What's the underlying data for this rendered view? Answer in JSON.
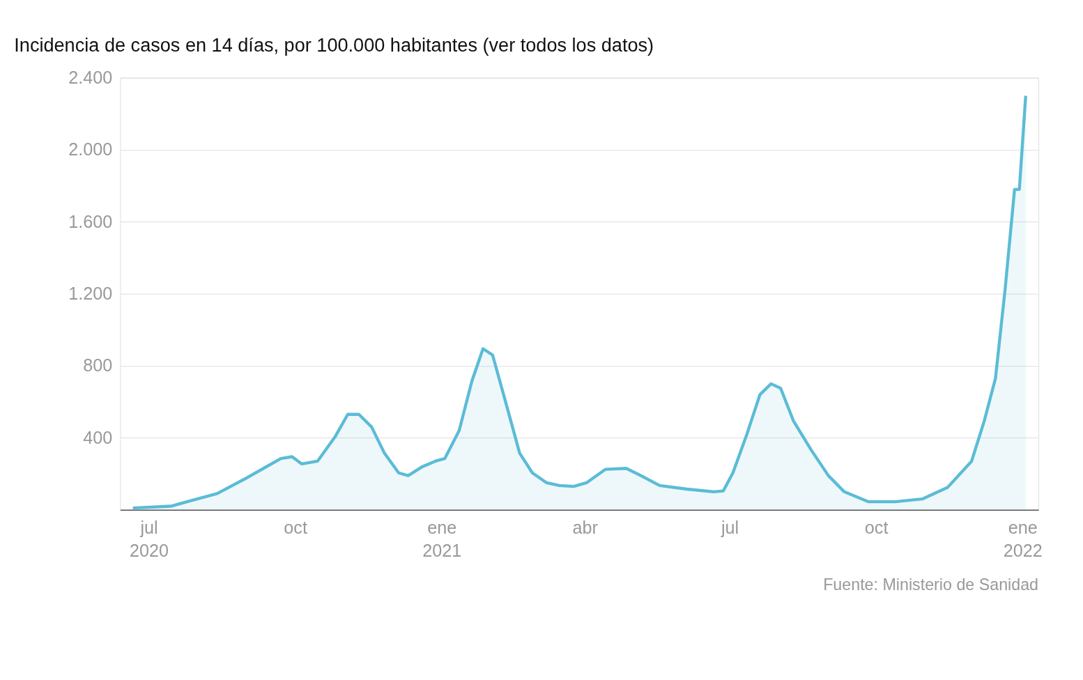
{
  "chart_data": {
    "type": "area",
    "title": "Incidencia de casos en 14 días, por 100.000 habitantes (ver todos los datos)",
    "x": [
      "2020-06-21",
      "2020-07-15",
      "2020-07-27",
      "2020-08-13",
      "2020-08-30",
      "2020-09-12",
      "2020-09-22",
      "2020-09-29",
      "2020-10-05",
      "2020-10-15",
      "2020-10-26",
      "2020-11-03",
      "2020-11-10",
      "2020-11-18",
      "2020-11-26",
      "2020-12-05",
      "2020-12-11",
      "2020-12-20",
      "2020-12-28",
      "2021-01-03",
      "2021-01-12",
      "2021-01-20",
      "2021-01-27",
      "2021-02-02",
      "2021-02-10",
      "2021-02-19",
      "2021-02-27",
      "2021-03-08",
      "2021-03-16",
      "2021-03-25",
      "2021-04-02",
      "2021-04-14",
      "2021-04-27",
      "2021-05-05",
      "2021-05-18",
      "2021-06-04",
      "2021-06-21",
      "2021-06-27",
      "2021-07-03",
      "2021-07-12",
      "2021-07-20",
      "2021-07-27",
      "2021-08-02",
      "2021-08-10",
      "2021-08-21",
      "2021-09-01",
      "2021-09-11",
      "2021-09-26",
      "2021-10-13",
      "2021-10-30",
      "2021-11-15",
      "2021-11-30",
      "2021-12-08",
      "2021-12-15",
      "2021-12-21",
      "2021-12-27",
      "2021-12-30",
      "2022-01-03"
    ],
    "series": [
      {
        "color": "#5bbcd6",
        "values": [
          10,
          20,
          50,
          90,
          170,
          235,
          285,
          295,
          255,
          270,
          405,
          530,
          530,
          460,
          315,
          205,
          190,
          240,
          270,
          285,
          440,
          715,
          895,
          860,
          605,
          315,
          205,
          150,
          135,
          130,
          150,
          225,
          230,
          195,
          135,
          115,
          100,
          105,
          205,
          425,
          640,
          700,
          675,
          495,
          335,
          190,
          100,
          45,
          45,
          60,
          125,
          270,
          495,
          730,
          1220,
          1780,
          1780,
          2300
        ]
      }
    ],
    "xlim": [
      "2020-06-13",
      "2022-01-11"
    ],
    "xticks": [
      {
        "value": "2020-07-01",
        "label": "jul 2020"
      },
      {
        "value": "2020-10-01",
        "label": "oct"
      },
      {
        "value": "2021-01-01",
        "label": "ene 2021"
      },
      {
        "value": "2021-04-01",
        "label": "abr"
      },
      {
        "value": "2021-07-01",
        "label": "jul"
      },
      {
        "value": "2021-10-01",
        "label": "oct"
      },
      {
        "value": "2022-01-01",
        "label": "ene 2022"
      }
    ],
    "ylim": [
      0,
      2400
    ],
    "yticks": [
      {
        "value": 400,
        "label": "400"
      },
      {
        "value": 800,
        "label": "800"
      },
      {
        "value": 1200,
        "label": "1.200"
      },
      {
        "value": 1600,
        "label": "1.600"
      },
      {
        "value": 2000,
        "label": "2.000"
      },
      {
        "value": 2400,
        "label": "2.400"
      }
    ],
    "grid": "y",
    "legend": false,
    "marker": "none",
    "line_style": "solid",
    "annotations": [
      "Fuente: Ministerio de Sanidad"
    ]
  }
}
